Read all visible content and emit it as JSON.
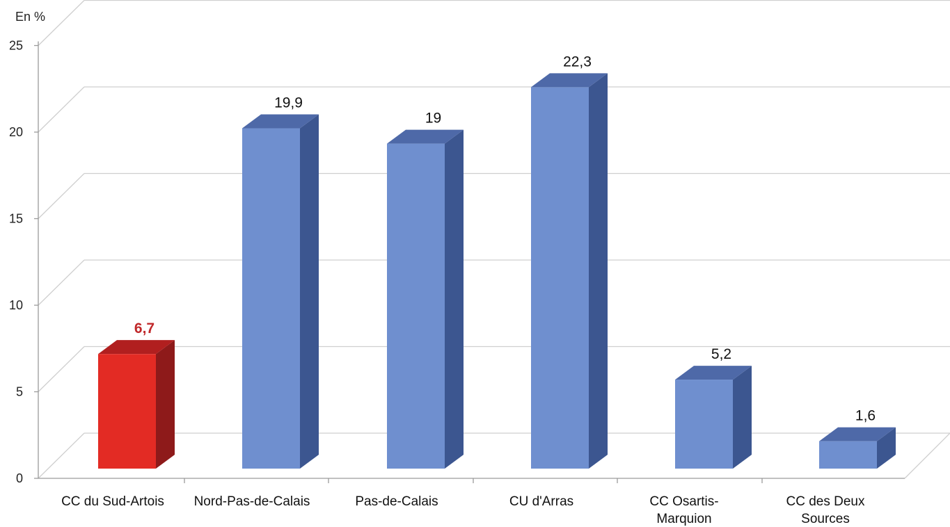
{
  "chart_data": {
    "type": "bar",
    "title": "",
    "xlabel": "",
    "ylabel": "En %",
    "ylim": [
      0,
      25
    ],
    "yticks": [
      0,
      5,
      10,
      15,
      20,
      25
    ],
    "grid": true,
    "three_d": true,
    "categories": [
      [
        "CC du Sud-Artois"
      ],
      [
        "Nord-Pas-de-Calais"
      ],
      [
        "Pas-de-Calais"
      ],
      [
        "CU d'Arras"
      ],
      [
        "CC Osartis-",
        "Marquion"
      ],
      [
        "CC des Deux",
        "Sources"
      ]
    ],
    "values": [
      6.7,
      19.9,
      19,
      22.3,
      5.2,
      1.6
    ],
    "value_labels": [
      "6,7",
      "19,9",
      "19",
      "22,3",
      "5,2",
      "1,6"
    ],
    "highlight_index": 0,
    "colors": {
      "bar_front": "#6f8fcf",
      "bar_side": "#3c5690",
      "bar_top": "#4e69a8",
      "highlight_front": "#e32b24",
      "highlight_side": "#8e1a1a",
      "highlight_top": "#b11f1f",
      "highlight_label": "#c0282a",
      "grid": "#cfcfcf",
      "axis": "#9a9a9a"
    }
  }
}
